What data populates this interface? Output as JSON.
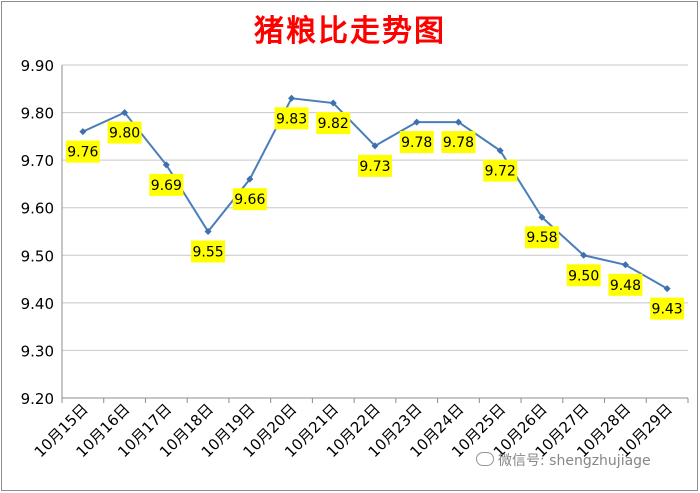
{
  "chart_data": {
    "type": "line",
    "title": "猪粮比走势图",
    "xlabel": "",
    "ylabel": "",
    "categories": [
      "10月15日",
      "10月16日",
      "10月17日",
      "10月18日",
      "10月19日",
      "10月20日",
      "10月21日",
      "10月22日",
      "10月23日",
      "10月24日",
      "10月25日",
      "10月26日",
      "10月27日",
      "10月28日",
      "10月29日"
    ],
    "values": [
      9.76,
      9.8,
      9.69,
      9.55,
      9.66,
      9.83,
      9.82,
      9.73,
      9.78,
      9.78,
      9.72,
      9.58,
      9.5,
      9.48,
      9.43
    ],
    "data_labels": [
      "9.76",
      "9.80",
      "9.69",
      "9.55",
      "9.66",
      "9.83",
      "9.82",
      "9.73",
      "9.78",
      "9.78",
      "9.72",
      "9.58",
      "9.50",
      "9.48",
      "9.43"
    ],
    "ylim": [
      9.2,
      9.9
    ],
    "yticks": [
      "9.20",
      "9.30",
      "9.40",
      "9.50",
      "9.60",
      "9.70",
      "9.80",
      "9.90"
    ],
    "grid": true,
    "legend": "none",
    "colors": {
      "line": "#4a7ebb",
      "marker": "#3f6fae",
      "label_bg": "#ffff00",
      "title": "#ff0000",
      "grid": "#c8c8c8"
    }
  },
  "watermark": {
    "text": "微信号: shengzhujiage",
    "icon": "wechat-icon"
  }
}
